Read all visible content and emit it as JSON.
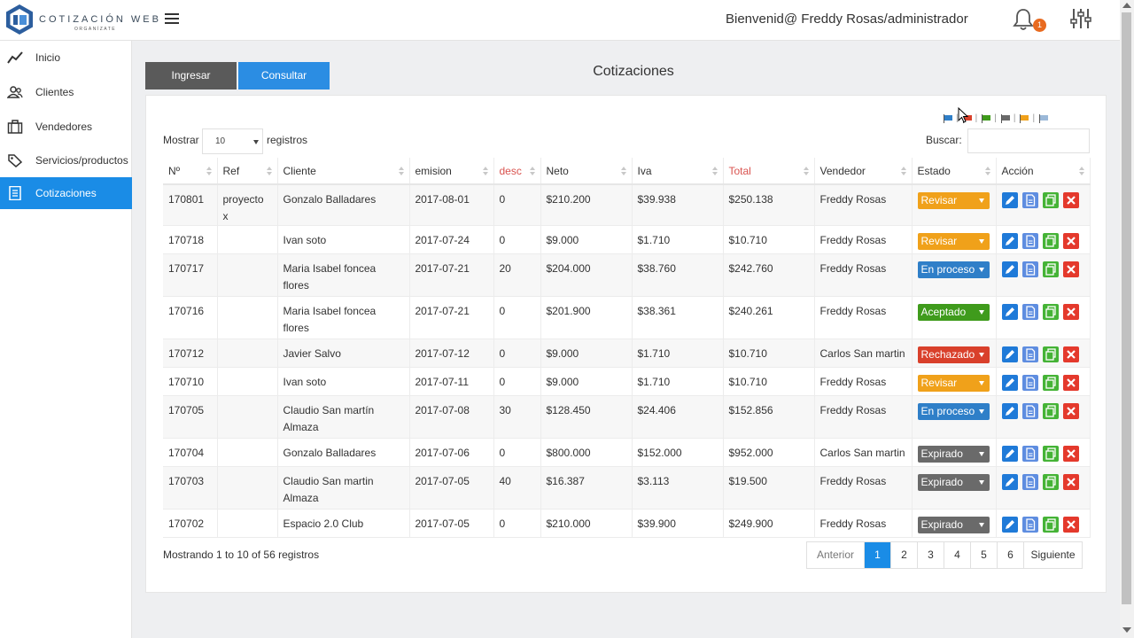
{
  "app": {
    "logo_title": "COTIZACIÓN WEB",
    "logo_subtitle": "ORGANÍZATE",
    "welcome": "Bienvenid@ Freddy Rosas/administrador",
    "notification_count": "1"
  },
  "sidebar": {
    "items": [
      {
        "label": "Inicio",
        "icon": "trend-line-icon"
      },
      {
        "label": "Clientes",
        "icon": "users-icon"
      },
      {
        "label": "Vendedores",
        "icon": "briefcase-icon"
      },
      {
        "label": "Servicios/productos",
        "icon": "tag-icon"
      },
      {
        "label": "Cotizaciones",
        "icon": "document-icon",
        "active": true
      }
    ]
  },
  "toolbar": {
    "ingresar": "Ingresar",
    "consultar": "Consultar",
    "title": "Cotizaciones"
  },
  "filters": {
    "show_label": "Mostrar",
    "page_size": "10",
    "registros_label": "registros",
    "search_label": "Buscar:",
    "search_value": "",
    "flag_colors": [
      "#2f7fc8",
      "#d9402b",
      "#3f9b1c",
      "#6a6a6a",
      "#f0a11a",
      "#9bb8d8"
    ]
  },
  "table": {
    "columns": [
      "Nº",
      "Ref",
      "Cliente",
      "emision",
      "desc",
      "Neto",
      "Iva",
      "Total",
      "Vendedor",
      "Estado",
      "Acción"
    ],
    "highlighted_columns": [
      "desc",
      "Total"
    ],
    "rows": [
      {
        "num": "170801",
        "ref": "proyecto x",
        "cliente": "Gonzalo Balladares",
        "emision": "2017-08-01",
        "desc": "0",
        "neto": "$210.200",
        "iva": "$39.938",
        "total": "$250.138",
        "vendedor": "Freddy Rosas",
        "estado": "Revisar"
      },
      {
        "num": "170718",
        "ref": "",
        "cliente": "Ivan soto",
        "emision": "2017-07-24",
        "desc": "0",
        "neto": "$9.000",
        "iva": "$1.710",
        "total": "$10.710",
        "vendedor": "Freddy Rosas",
        "estado": "Revisar"
      },
      {
        "num": "170717",
        "ref": "",
        "cliente": "Maria Isabel foncea flores",
        "emision": "2017-07-21",
        "desc": "20",
        "neto": "$204.000",
        "iva": "$38.760",
        "total": "$242.760",
        "vendedor": "Freddy Rosas",
        "estado": "En proceso"
      },
      {
        "num": "170716",
        "ref": "",
        "cliente": "Maria Isabel foncea flores",
        "emision": "2017-07-21",
        "desc": "0",
        "neto": "$201.900",
        "iva": "$38.361",
        "total": "$240.261",
        "vendedor": "Freddy Rosas",
        "estado": "Aceptado"
      },
      {
        "num": "170712",
        "ref": "",
        "cliente": "Javier Salvo",
        "emision": "2017-07-12",
        "desc": "0",
        "neto": "$9.000",
        "iva": "$1.710",
        "total": "$10.710",
        "vendedor": "Carlos San martin",
        "estado": "Rechazado"
      },
      {
        "num": "170710",
        "ref": "",
        "cliente": "Ivan soto",
        "emision": "2017-07-11",
        "desc": "0",
        "neto": "$9.000",
        "iva": "$1.710",
        "total": "$10.710",
        "vendedor": "Freddy Rosas",
        "estado": "Revisar"
      },
      {
        "num": "170705",
        "ref": "",
        "cliente": "Claudio San martín Almaza",
        "emision": "2017-07-08",
        "desc": "30",
        "neto": "$128.450",
        "iva": "$24.406",
        "total": "$152.856",
        "vendedor": "Freddy Rosas",
        "estado": "En proceso"
      },
      {
        "num": "170704",
        "ref": "",
        "cliente": "Gonzalo Balladares",
        "emision": "2017-07-06",
        "desc": "0",
        "neto": "$800.000",
        "iva": "$152.000",
        "total": "$952.000",
        "vendedor": "Carlos San martin",
        "estado": "Expirado"
      },
      {
        "num": "170703",
        "ref": "",
        "cliente": "Claudio San martin Almaza",
        "emision": "2017-07-05",
        "desc": "40",
        "neto": "$16.387",
        "iva": "$3.113",
        "total": "$19.500",
        "vendedor": "Freddy Rosas",
        "estado": "Expirado"
      },
      {
        "num": "170702",
        "ref": "",
        "cliente": "Espacio 2.0 Club",
        "emision": "2017-07-05",
        "desc": "0",
        "neto": "$210.000",
        "iva": "$39.900",
        "total": "$249.900",
        "vendedor": "Freddy Rosas",
        "estado": "Expirado"
      }
    ]
  },
  "footer": {
    "info": "Mostrando 1 to 10 of 56 registros",
    "prev": "Anterior",
    "pages": [
      "1",
      "2",
      "3",
      "4",
      "5",
      "6"
    ],
    "current_page": "1",
    "next": "Siguiente"
  },
  "status_colors": {
    "Revisar": "#f0a11a",
    "En proceso": "#2f7fc8",
    "Aceptado": "#3f9b1c",
    "Rechazado": "#d9402b",
    "Expirado": "#6a6a6a"
  }
}
